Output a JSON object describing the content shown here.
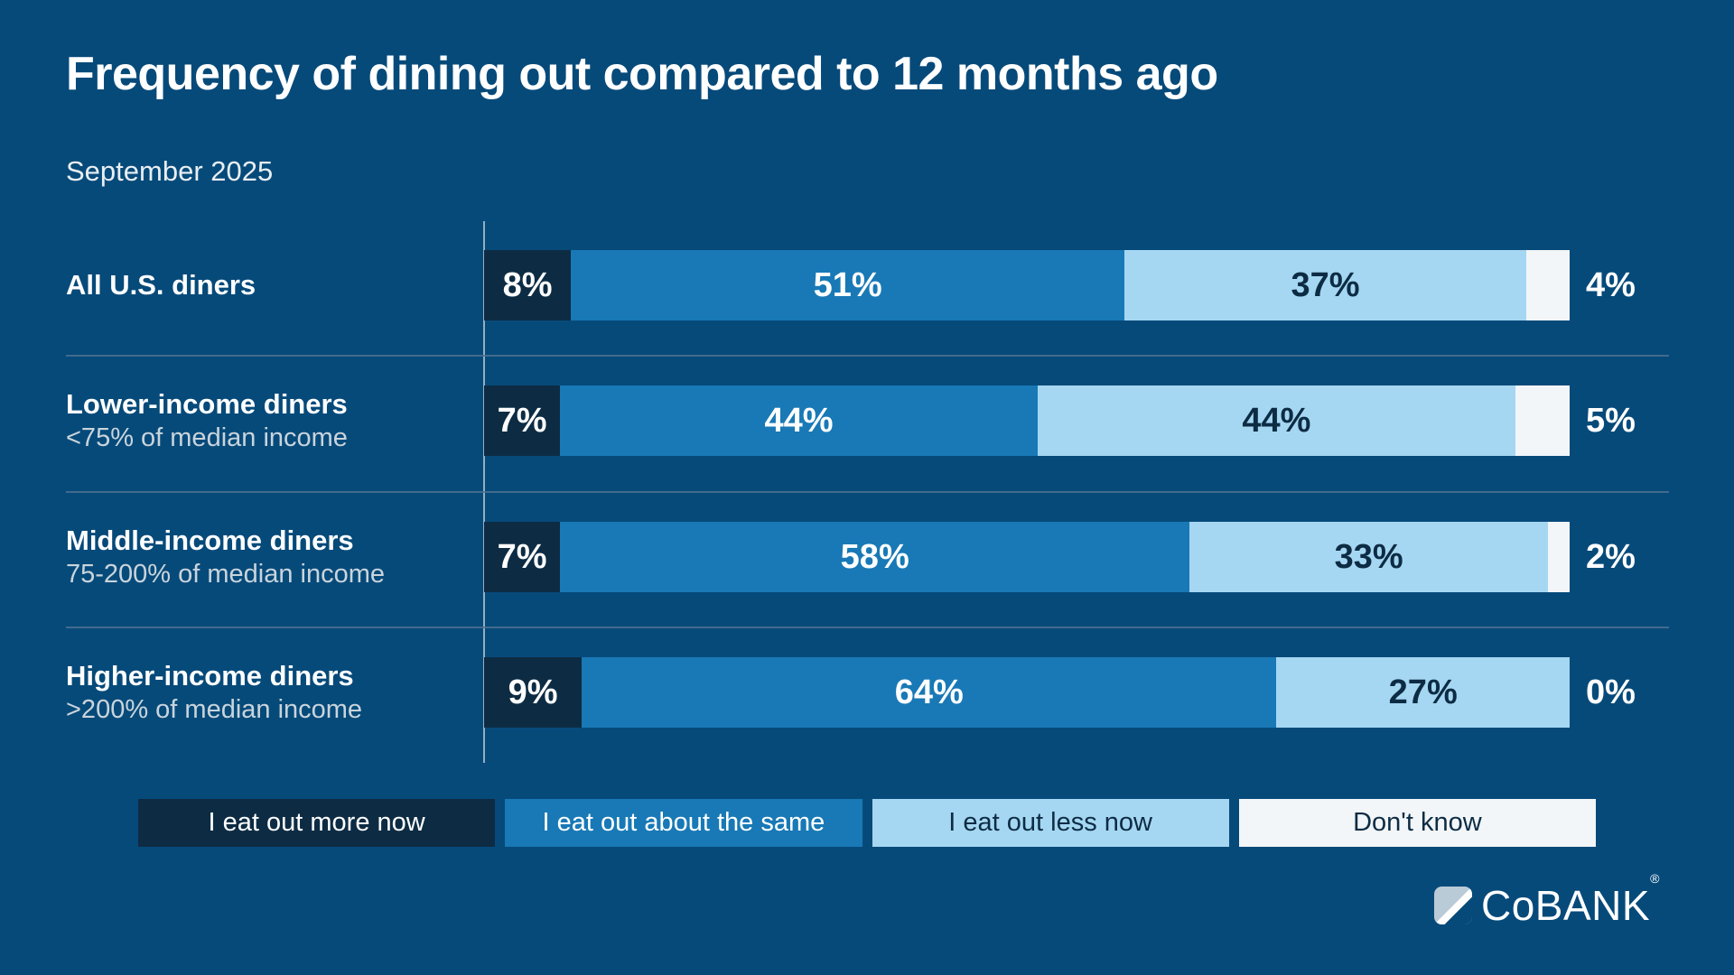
{
  "title": "Frequency of dining out compared to 12 months ago",
  "subtitle": "September 2025",
  "colors": {
    "background": "#064a7a",
    "more_now": "#0d2c44",
    "about_same": "#1879b6",
    "less_now": "#a5d7f2",
    "dont_know": "#f2f6f8",
    "text_light": "#ffffff",
    "text_dark": "#0d2c44",
    "divider": "#4e7191",
    "axis_line": "#b0bfca"
  },
  "chart_data": {
    "type": "bar",
    "variant": "horizontal-stacked-100",
    "title": "Frequency of dining out compared to 12 months ago",
    "subtitle": "September 2025",
    "categories": [
      "All U.S. diners",
      "Lower-income diners",
      "Middle-income diners",
      "Higher-income diners"
    ],
    "category_sublabels": [
      "",
      "<75% of median income",
      "75-200% of median income",
      ">200% of median income"
    ],
    "series": [
      {
        "name": "I eat out more now",
        "color": "#0d2c44",
        "values": [
          8,
          7,
          7,
          9
        ]
      },
      {
        "name": "I eat out about the same",
        "color": "#1879b6",
        "values": [
          51,
          44,
          58,
          64
        ]
      },
      {
        "name": "I eat out less now",
        "color": "#a5d7f2",
        "values": [
          37,
          44,
          33,
          27
        ]
      },
      {
        "name": "Don't know",
        "color": "#f2f6f8",
        "values": [
          4,
          5,
          2,
          0
        ]
      }
    ],
    "value_suffix": "%",
    "xlim": [
      0,
      100
    ],
    "grid": false,
    "legend_position": "bottom"
  },
  "rows": [
    {
      "label": "All U.S. diners",
      "sublabel": "",
      "segments": [
        {
          "pct": 8,
          "label": "8%"
        },
        {
          "pct": 51,
          "label": "51%"
        },
        {
          "pct": 37,
          "label": "37%"
        },
        {
          "pct": 4,
          "label": ""
        }
      ],
      "outside_label": "4%"
    },
    {
      "label": "Lower-income diners",
      "sublabel": "<75% of median income",
      "segments": [
        {
          "pct": 7,
          "label": "7%"
        },
        {
          "pct": 44,
          "label": "44%"
        },
        {
          "pct": 44,
          "label": "44%"
        },
        {
          "pct": 5,
          "label": ""
        }
      ],
      "outside_label": "5%"
    },
    {
      "label": "Middle-income diners",
      "sublabel": "75-200% of median income",
      "segments": [
        {
          "pct": 7,
          "label": "7%"
        },
        {
          "pct": 58,
          "label": "58%"
        },
        {
          "pct": 33,
          "label": "33%"
        },
        {
          "pct": 2,
          "label": ""
        }
      ],
      "outside_label": "2%"
    },
    {
      "label": "Higher-income diners",
      "sublabel": ">200% of median income",
      "segments": [
        {
          "pct": 9,
          "label": "9%"
        },
        {
          "pct": 64,
          "label": "64%"
        },
        {
          "pct": 27,
          "label": "27%"
        },
        {
          "pct": 0,
          "label": ""
        }
      ],
      "outside_label": "0%"
    }
  ],
  "legend": [
    {
      "label": "I eat out more now"
    },
    {
      "label": "I eat out about the same"
    },
    {
      "label": "I eat out less now"
    },
    {
      "label": "Don't know"
    }
  ],
  "logo": {
    "text": "CoBANK",
    "reg": "®"
  }
}
